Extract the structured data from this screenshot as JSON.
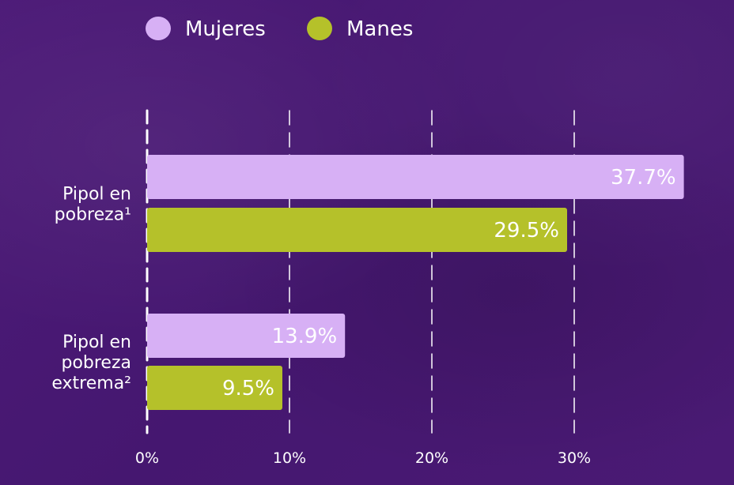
{
  "chart_data": {
    "type": "bar",
    "orientation": "horizontal",
    "categories": [
      "Pipol en pobreza¹",
      "Pipol en pobreza extrema²"
    ],
    "category_lines": [
      [
        "Pipol en",
        "pobreza¹"
      ],
      [
        "Pipol en",
        "pobreza",
        "extrema²"
      ]
    ],
    "series": [
      {
        "name": "Mujeres",
        "values": [
          37.7,
          13.9
        ],
        "labels": [
          "37.7%",
          "13.9%"
        ],
        "color": "#d7b0f5"
      },
      {
        "name": "Manes",
        "values": [
          29.5,
          9.5
        ],
        "labels": [
          "29.5%",
          "9.5%"
        ],
        "color": "#b5c12a"
      }
    ],
    "xlim": [
      0,
      37.7
    ],
    "xticks": [
      0,
      10,
      20,
      30
    ],
    "xtick_labels": [
      "0%",
      "10%",
      "20%",
      "30%"
    ],
    "grid": "vertical dashed",
    "legend_placement": "top"
  },
  "colors": {
    "background": "#4a1a74",
    "text": "#ffffff"
  }
}
